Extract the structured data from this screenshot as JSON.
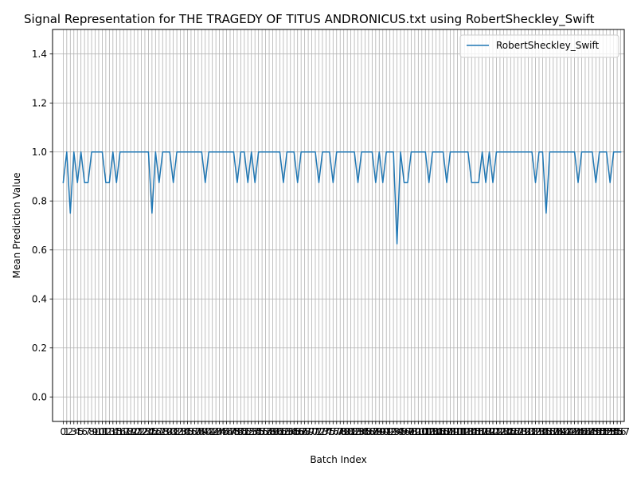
{
  "chart_data": {
    "type": "line",
    "title": "Signal Representation for THE TRAGEDY OF TITUS ANDRONICUS.txt using RobertSheckley_Swift",
    "xlabel": "Batch Index",
    "ylabel": "Mean Prediction Value",
    "xlim": [
      -3,
      158
    ],
    "ylim": [
      -0.1,
      1.5
    ],
    "yticks": [
      0.0,
      0.2,
      0.4,
      0.6,
      0.8,
      1.0,
      1.2,
      1.4
    ],
    "ytick_labels": [
      "0.0",
      "0.2",
      "0.4",
      "0.6",
      "0.8",
      "1.0",
      "1.2",
      "1.4"
    ],
    "grid": true,
    "legend_position": "top-right",
    "series": [
      {
        "name": "RobertSheckley_Swift",
        "color": "#1f77b4",
        "values": [
          0.875,
          1.0,
          0.75,
          1.0,
          0.875,
          1.0,
          0.875,
          0.875,
          1.0,
          1.0,
          1.0,
          1.0,
          0.875,
          0.875,
          1.0,
          0.875,
          1.0,
          1.0,
          1.0,
          1.0,
          1.0,
          1.0,
          1.0,
          1.0,
          1.0,
          0.75,
          1.0,
          0.875,
          1.0,
          1.0,
          1.0,
          0.875,
          1.0,
          1.0,
          1.0,
          1.0,
          1.0,
          1.0,
          1.0,
          1.0,
          0.875,
          1.0,
          1.0,
          1.0,
          1.0,
          1.0,
          1.0,
          1.0,
          1.0,
          0.875,
          1.0,
          1.0,
          0.875,
          1.0,
          0.875,
          1.0,
          1.0,
          1.0,
          1.0,
          1.0,
          1.0,
          1.0,
          0.875,
          1.0,
          1.0,
          1.0,
          0.875,
          1.0,
          1.0,
          1.0,
          1.0,
          1.0,
          0.875,
          1.0,
          1.0,
          1.0,
          0.875,
          1.0,
          1.0,
          1.0,
          1.0,
          1.0,
          1.0,
          0.875,
          1.0,
          1.0,
          1.0,
          1.0,
          0.875,
          1.0,
          0.875,
          1.0,
          1.0,
          1.0,
          0.625,
          1.0,
          0.875,
          0.875,
          1.0,
          1.0,
          1.0,
          1.0,
          1.0,
          0.875,
          1.0,
          1.0,
          1.0,
          1.0,
          0.875,
          1.0,
          1.0,
          1.0,
          1.0,
          1.0,
          1.0,
          0.875,
          0.875,
          0.875,
          1.0,
          0.875,
          1.0,
          0.875,
          1.0,
          1.0,
          1.0,
          1.0,
          1.0,
          1.0,
          1.0,
          1.0,
          1.0,
          1.0,
          1.0,
          0.875,
          1.0,
          1.0,
          0.75,
          1.0,
          1.0,
          1.0,
          1.0,
          1.0,
          1.0,
          1.0,
          1.0,
          0.875,
          1.0,
          1.0,
          1.0,
          1.0,
          0.875,
          1.0,
          1.0,
          1.0,
          0.875,
          1.0,
          1.0,
          1.0
        ]
      }
    ]
  }
}
